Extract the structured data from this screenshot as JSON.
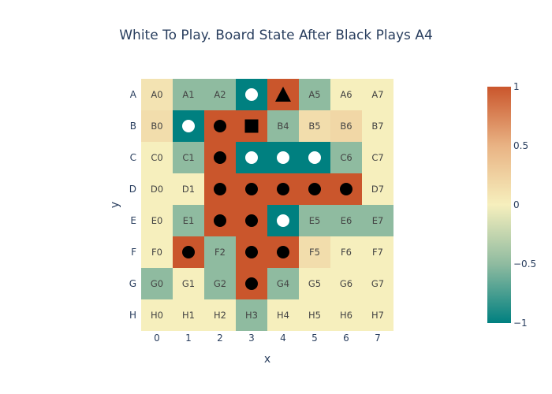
{
  "chart_data": {
    "type": "heatmap",
    "title": "White To Play. Board State After Black Plays A4",
    "xlabel": "x",
    "ylabel": "y",
    "x_ticks": [
      "0",
      "1",
      "2",
      "3",
      "4",
      "5",
      "6",
      "7"
    ],
    "y_ticks": [
      "A",
      "B",
      "C",
      "D",
      "E",
      "F",
      "G",
      "H"
    ],
    "zmin": -1,
    "zmax": 1,
    "colorscale": [
      {
        "value": -1,
        "color": "#008080"
      },
      {
        "value": -0.5,
        "color": "#8fbba0"
      },
      {
        "value": 0,
        "color": "#f6efbd"
      },
      {
        "value": 0.5,
        "color": "#e9b384"
      },
      {
        "value": 1,
        "color": "#ca562c"
      }
    ],
    "colorbar_ticks": [
      "1",
      "0.5",
      "0",
      "−0.5",
      "−1"
    ],
    "z": [
      [
        0.1,
        -0.5,
        -0.5,
        -1,
        1,
        -0.5,
        0,
        0
      ],
      [
        0.15,
        -1,
        1,
        1,
        -0.5,
        0.15,
        0.2,
        0
      ],
      [
        0,
        -0.5,
        1,
        -1,
        -1,
        -1,
        -0.5,
        0
      ],
      [
        0,
        0,
        1,
        1,
        1,
        1,
        1,
        0
      ],
      [
        0,
        -0.5,
        1,
        1,
        -1,
        -0.5,
        -0.5,
        -0.5
      ],
      [
        0,
        1,
        -0.5,
        1,
        1,
        0.15,
        0,
        0
      ],
      [
        -0.5,
        0,
        -0.5,
        1,
        -0.5,
        0,
        0,
        0
      ],
      [
        0,
        0,
        0,
        -0.5,
        0,
        0,
        0,
        0
      ]
    ],
    "cells": [
      [
        "A0",
        "A1",
        "A2",
        "white-stone",
        "black-triangle",
        "A5",
        "A6",
        "A7"
      ],
      [
        "B0",
        "white-stone",
        "black-stone",
        "black-square",
        "B4",
        "B5",
        "B6",
        "B7"
      ],
      [
        "C0",
        "C1",
        "black-stone",
        "white-stone",
        "white-stone",
        "white-stone",
        "C6",
        "C7"
      ],
      [
        "D0",
        "D1",
        "black-stone",
        "black-stone",
        "black-stone",
        "black-stone",
        "black-stone",
        "D7"
      ],
      [
        "E0",
        "E1",
        "black-stone",
        "black-stone",
        "white-stone",
        "E5",
        "E6",
        "E7"
      ],
      [
        "F0",
        "black-stone",
        "F2",
        "black-stone",
        "black-stone",
        "F5",
        "F6",
        "F7"
      ],
      [
        "G0",
        "G1",
        "G2",
        "black-stone",
        "G4",
        "G5",
        "G6",
        "G7"
      ],
      [
        "H0",
        "H1",
        "H2",
        "H3",
        "H4",
        "H5",
        "H6",
        "H7"
      ]
    ]
  }
}
